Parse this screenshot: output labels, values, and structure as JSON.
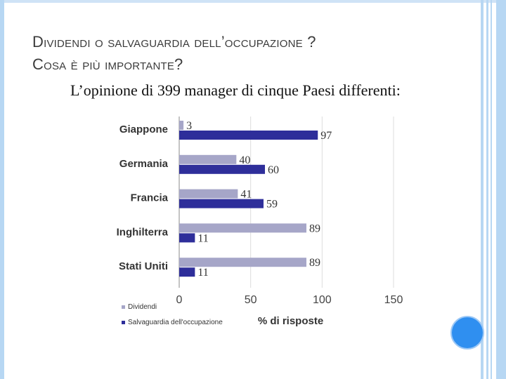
{
  "slide": {
    "title_line1": "Dividendi o salvaguardia dell’occupazione ?",
    "title_line2": "Cosa è più importante?",
    "subtitle": "L’opinione di 399 manager di cinque Paesi differenti:"
  },
  "chart_data": {
    "type": "bar",
    "orientation": "horizontal",
    "categories": [
      "Giappone",
      "Germania",
      "Francia",
      "Inghilterra",
      "Stati Uniti"
    ],
    "series": [
      {
        "name": "Dividendi",
        "values": [
          3,
          40,
          41,
          89,
          89
        ],
        "color": "#a6a6c8"
      },
      {
        "name": "Salvaguardia dell'occupazione",
        "values": [
          97,
          60,
          59,
          11,
          11
        ],
        "color": "#2e2e9a"
      }
    ],
    "xlabel": "% di risposte",
    "xlim": [
      0,
      150
    ],
    "xticks": [
      "0",
      "50",
      "100",
      "150"
    ],
    "legend_position": "bottom-left",
    "grid": true
  },
  "colors": {
    "accent_blue": "#2f8ff0",
    "border_blue": "#b7d7f3"
  }
}
